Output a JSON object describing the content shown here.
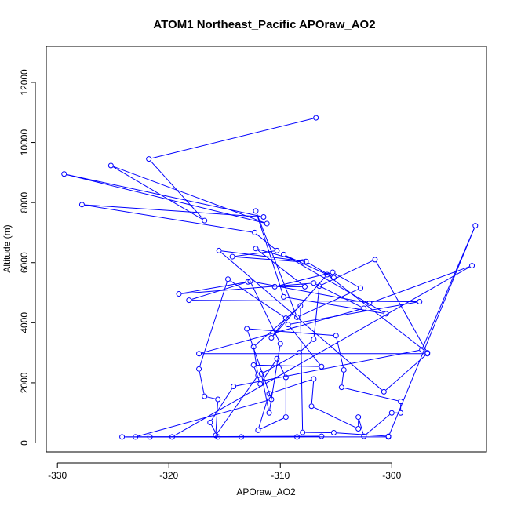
{
  "chart_data": {
    "type": "line",
    "title": "ATOM1 Northeast_Pacific APOraw_AO2",
    "xlabel": "APOraw_AO2",
    "ylabel": "Altitude (m)",
    "xlim": [
      -331,
      -291.5
    ],
    "ylim": [
      -300,
      13200
    ],
    "x_ticks": [
      -330,
      -320,
      -310,
      -300
    ],
    "y_ticks": [
      0,
      2000,
      4000,
      6000,
      8000,
      10000,
      12000
    ],
    "grid": false,
    "marker": "open-circle",
    "color": "#0000ff",
    "series": [
      {
        "values": [
          {
            "x": -306.8,
            "y": 10820
          },
          {
            "x": -321.8,
            "y": 9450
          },
          {
            "x": -316.8,
            "y": 7400
          },
          {
            "x": -325.2,
            "y": 9230
          },
          {
            "x": -311.2,
            "y": 7300
          },
          {
            "x": -329.4,
            "y": 8950
          },
          {
            "x": -311.5,
            "y": 7520
          },
          {
            "x": -327.8,
            "y": 7930
          },
          {
            "x": -312.3,
            "y": 7000
          },
          {
            "x": -310.3,
            "y": 6400
          },
          {
            "x": -314.3,
            "y": 6200
          },
          {
            "x": -308.0,
            "y": 6020
          },
          {
            "x": -312.2,
            "y": 6470
          },
          {
            "x": -307.8,
            "y": 5200
          },
          {
            "x": -310.5,
            "y": 5200
          },
          {
            "x": -305.3,
            "y": 5680
          },
          {
            "x": -302.8,
            "y": 5150
          },
          {
            "x": -308.5,
            "y": 4180
          },
          {
            "x": -312.2,
            "y": 7720
          },
          {
            "x": -309.7,
            "y": 4860
          },
          {
            "x": -300.5,
            "y": 4300
          },
          {
            "x": -309.7,
            "y": 6270
          },
          {
            "x": -305.2,
            "y": 5500
          },
          {
            "x": -307.7,
            "y": 6040
          },
          {
            "x": -315.5,
            "y": 6400
          },
          {
            "x": -300.7,
            "y": 1700
          },
          {
            "x": -296.8,
            "y": 2970
          },
          {
            "x": -317.3,
            "y": 2970
          },
          {
            "x": -302.5,
            "y": 4480
          },
          {
            "x": -307.0,
            "y": 5320
          },
          {
            "x": -319.1,
            "y": 4960
          },
          {
            "x": -312.9,
            "y": 5360
          },
          {
            "x": -318.2,
            "y": 4750
          },
          {
            "x": -297.5,
            "y": 4700
          },
          {
            "x": -309.3,
            "y": 3940
          },
          {
            "x": -306.3,
            "y": 2540
          },
          {
            "x": -312.4,
            "y": 2590
          },
          {
            "x": -311.8,
            "y": 1960
          },
          {
            "x": -310.3,
            "y": 2800
          },
          {
            "x": -309.5,
            "y": 2180
          },
          {
            "x": -309.5,
            "y": 860
          },
          {
            "x": -312.0,
            "y": 420
          },
          {
            "x": -311.0,
            "y": 1640
          },
          {
            "x": -307.0,
            "y": 2130
          },
          {
            "x": -307.2,
            "y": 1220
          },
          {
            "x": -303.0,
            "y": 470
          },
          {
            "x": -303.0,
            "y": 860
          },
          {
            "x": -302.5,
            "y": 220
          },
          {
            "x": -300.0,
            "y": 1000
          },
          {
            "x": -299.2,
            "y": 1000
          },
          {
            "x": -299.2,
            "y": 1380
          },
          {
            "x": -304.5,
            "y": 1850
          },
          {
            "x": -304.3,
            "y": 2430
          },
          {
            "x": -305.0,
            "y": 3570
          },
          {
            "x": -313.0,
            "y": 3800
          },
          {
            "x": -310.8,
            "y": 1450
          },
          {
            "x": -323.0,
            "y": 200
          },
          {
            "x": -313.5,
            "y": 200
          },
          {
            "x": -321.7,
            "y": 200
          },
          {
            "x": -306.3,
            "y": 220
          },
          {
            "x": -308.5,
            "y": 200
          },
          {
            "x": -324.2,
            "y": 200
          },
          {
            "x": -300.3,
            "y": 200
          },
          {
            "x": -292.5,
            "y": 7230
          },
          {
            "x": -297.3,
            "y": 3100
          },
          {
            "x": -314.2,
            "y": 1880
          },
          {
            "x": -316.3,
            "y": 680
          },
          {
            "x": -315.6,
            "y": 200
          },
          {
            "x": -319.7,
            "y": 200
          },
          {
            "x": -292.8,
            "y": 5900
          },
          {
            "x": -302.0,
            "y": 4650
          },
          {
            "x": -312.7,
            "y": 5380
          },
          {
            "x": -310.0,
            "y": 3300
          },
          {
            "x": -311.0,
            "y": 1000
          },
          {
            "x": -311.7,
            "y": 2300
          },
          {
            "x": -308.3,
            "y": 3000
          },
          {
            "x": -307.0,
            "y": 3450
          },
          {
            "x": -306.5,
            "y": 5220
          },
          {
            "x": -301.5,
            "y": 6100
          },
          {
            "x": -296.8,
            "y": 3000
          },
          {
            "x": -305.8,
            "y": 5600
          },
          {
            "x": -310.8,
            "y": 3500
          },
          {
            "x": -309.5,
            "y": 4150
          },
          {
            "x": -314.7,
            "y": 5450
          },
          {
            "x": -317.3,
            "y": 2460
          },
          {
            "x": -316.8,
            "y": 1550
          },
          {
            "x": -315.6,
            "y": 1450
          },
          {
            "x": -315.8,
            "y": 250
          },
          {
            "x": -312.0,
            "y": 2250
          },
          {
            "x": -312.4,
            "y": 3200
          },
          {
            "x": -308.2,
            "y": 4560
          },
          {
            "x": -308.0,
            "y": 350
          },
          {
            "x": -305.2,
            "y": 340
          },
          {
            "x": -300.3,
            "y": 220
          }
        ]
      }
    ]
  }
}
